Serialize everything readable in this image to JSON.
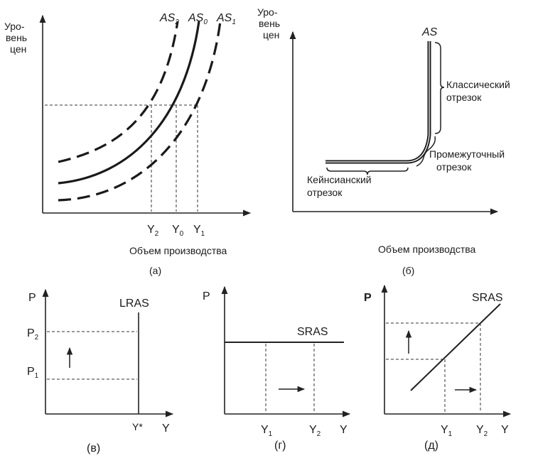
{
  "panel_a": {
    "y_axis_label": [
      "Уро-",
      "вень",
      "цен"
    ],
    "curve_labels": {
      "as2": "AS",
      "as2_sub": "2",
      "as0": "AS",
      "as0_sub": "0",
      "as1": "AS",
      "as1_sub": "1"
    },
    "x_ticks": {
      "y2": "Y",
      "y2_sub": "2",
      "y0": "Y",
      "y0_sub": "0",
      "y1": "Y",
      "y1_sub": "1"
    },
    "x_axis_label": "Объем производства",
    "caption": "(а)"
  },
  "panel_b": {
    "y_axis_label": [
      "Уро-",
      "вень",
      "цен"
    ],
    "curve_label": "AS",
    "classic_label": [
      "Классический",
      "отрезок"
    ],
    "intermediate_label": [
      "Промежуточный",
      "отрезок"
    ],
    "keynes_label": [
      "Кейнсианский",
      "отрезок"
    ],
    "x_axis_label": "Объем производства",
    "caption": "(б)"
  },
  "panel_v": {
    "y_axis": "P",
    "curve_label": "LRAS",
    "p2": "P",
    "p2_sub": "2",
    "p1": "P",
    "p1_sub": "1",
    "y_star": "Y*",
    "x_axis": "Y",
    "caption": "(в)"
  },
  "panel_g": {
    "y_axis": "P",
    "curve_label": "SRAS",
    "y1": "Y",
    "y1_sub": "1",
    "y2": "Y",
    "y2_sub": "2",
    "x_axis": "Y",
    "caption": "(г)"
  },
  "panel_d": {
    "y_axis": "P",
    "curve_label": "SRAS",
    "y1": "Y",
    "y1_sub": "1",
    "y2": "Y",
    "y2_sub": "2",
    "x_axis": "Y",
    "caption": "(д)"
  }
}
